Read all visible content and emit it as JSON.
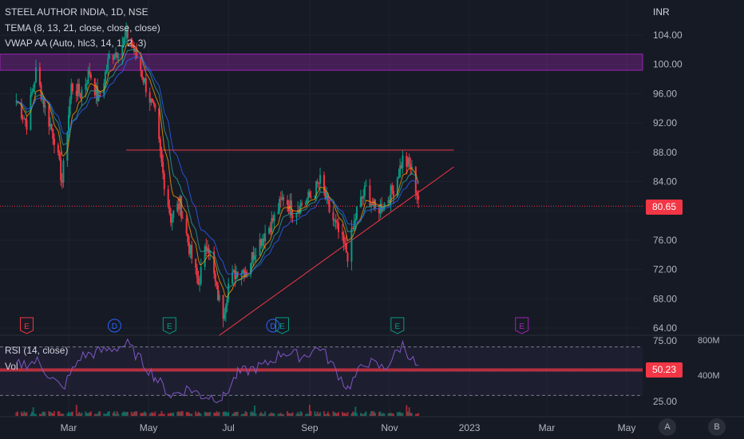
{
  "header": {
    "title": "STEEL AUTHOR INDIA, 1D, NSE",
    "indicator_tema": "TEMA (8, 13, 21, close, close, close)",
    "indicator_vwap": "VWAP AA (Auto, hlc3, 14, 1, 2, 3)",
    "currency": "INR"
  },
  "price_panel": {
    "y_ticks": [
      "104.00",
      "100.00",
      "96.00",
      "92.00",
      "88.00",
      "84.00",
      "80.00",
      "76.00",
      "72.00",
      "68.00",
      "64.00"
    ],
    "last_price": "80.65",
    "last_price_value": 80.65,
    "resistance_level": 88.3,
    "supply_zone": [
      99.2,
      101.4
    ],
    "trendline": [
      {
        "date": "2022-06-24",
        "price": 63.0
      },
      {
        "date": "2022-12-20",
        "price": 86.0
      }
    ],
    "event_markers": [
      {
        "label": "E",
        "color": "#f23645",
        "date": "2022-01-28"
      },
      {
        "label": "D",
        "color": "#2962ff",
        "date": "2022-04-05"
      },
      {
        "label": "E",
        "color": "#089981",
        "date": "2022-05-17"
      },
      {
        "label": "D",
        "color": "#2962ff",
        "date": "2022-08-04"
      },
      {
        "label": "E",
        "color": "#089981",
        "date": "2022-08-11"
      },
      {
        "label": "E",
        "color": "#089981",
        "date": "2022-11-07"
      },
      {
        "label": "E",
        "color": "#9c27b0",
        "date": "2023-02-10"
      }
    ]
  },
  "rsi_panel": {
    "label": "RSI (14, close)",
    "vol_label": "Vol",
    "y_ticks": [
      "75.00",
      "25.00"
    ],
    "last_value": "50.23",
    "last_value_num": 50.23,
    "upper_band": 70,
    "lower_band": 30,
    "vol_ticks": [
      "800M",
      "400M"
    ]
  },
  "x_axis": {
    "labels": [
      "Mar",
      "May",
      "Jul",
      "Sep",
      "Nov",
      "2023",
      "Mar",
      "May"
    ],
    "dates": [
      "2022-03-01",
      "2022-05-01",
      "2022-07-01",
      "2022-09-01",
      "2022-11-01",
      "2023-01-01",
      "2023-03-01",
      "2023-05-01"
    ]
  },
  "corner_buttons": [
    "A",
    "B"
  ],
  "colors": {
    "background": "#161a25",
    "bull": "#089981",
    "bear": "#f23645",
    "zone": "#9c27b0",
    "tema1": "#ff9800",
    "tema2": "#2962ff",
    "rsi": "#7e57c2",
    "trendline": "#f23645"
  },
  "chart_data": {
    "type": "candlestick",
    "symbol": "STEEL AUTHOR INDIA",
    "interval": "1D",
    "exchange": "NSE",
    "currency": "INR",
    "ylim": [
      63,
      106
    ],
    "anchors": [
      [
        "2022-01-20",
        95
      ],
      [
        "2022-01-28",
        92
      ],
      [
        "2022-02-04",
        99
      ],
      [
        "2022-02-11",
        94
      ],
      [
        "2022-02-18",
        90
      ],
      [
        "2022-02-24",
        84
      ],
      [
        "2022-03-03",
        97
      ],
      [
        "2022-03-10",
        96
      ],
      [
        "2022-03-17",
        99
      ],
      [
        "2022-03-24",
        95
      ],
      [
        "2022-04-01",
        101
      ],
      [
        "2022-04-08",
        102
      ],
      [
        "2022-04-15",
        104
      ],
      [
        "2022-04-22",
        101
      ],
      [
        "2022-04-29",
        97
      ],
      [
        "2022-05-06",
        93
      ],
      [
        "2022-05-12",
        85
      ],
      [
        "2022-05-18",
        79
      ],
      [
        "2022-05-25",
        81
      ],
      [
        "2022-06-01",
        75
      ],
      [
        "2022-06-08",
        70
      ],
      [
        "2022-06-15",
        76
      ],
      [
        "2022-06-22",
        69
      ],
      [
        "2022-06-27",
        66
      ],
      [
        "2022-07-01",
        70
      ],
      [
        "2022-07-08",
        72
      ],
      [
        "2022-07-15",
        72
      ],
      [
        "2022-07-22",
        75
      ],
      [
        "2022-07-29",
        77
      ],
      [
        "2022-08-05",
        79
      ],
      [
        "2022-08-12",
        82
      ],
      [
        "2022-08-19",
        80
      ],
      [
        "2022-08-26",
        81
      ],
      [
        "2022-09-02",
        82
      ],
      [
        "2022-09-09",
        84
      ],
      [
        "2022-09-16",
        80
      ],
      [
        "2022-09-23",
        77
      ],
      [
        "2022-09-30",
        74
      ],
      [
        "2022-10-07",
        80
      ],
      [
        "2022-10-14",
        83
      ],
      [
        "2022-10-21",
        80
      ],
      [
        "2022-10-28",
        81
      ],
      [
        "2022-11-04",
        83
      ],
      [
        "2022-11-11",
        87
      ],
      [
        "2022-11-17",
        86
      ],
      [
        "2022-11-24",
        81
      ]
    ],
    "rsi_anchors": [
      [
        "2022-01-20",
        55
      ],
      [
        "2022-02-05",
        58
      ],
      [
        "2022-02-24",
        35
      ],
      [
        "2022-03-10",
        62
      ],
      [
        "2022-04-01",
        68
      ],
      [
        "2022-04-15",
        72
      ],
      [
        "2022-05-06",
        45
      ],
      [
        "2022-05-18",
        30
      ],
      [
        "2022-06-01",
        36
      ],
      [
        "2022-06-10",
        30
      ],
      [
        "2022-06-27",
        28
      ],
      [
        "2022-07-08",
        48
      ],
      [
        "2022-07-29",
        55
      ],
      [
        "2022-08-12",
        66
      ],
      [
        "2022-08-26",
        62
      ],
      [
        "2022-09-09",
        70
      ],
      [
        "2022-09-30",
        36
      ],
      [
        "2022-10-14",
        58
      ],
      [
        "2022-10-28",
        52
      ],
      [
        "2022-11-11",
        72
      ],
      [
        "2022-11-24",
        50
      ]
    ]
  }
}
